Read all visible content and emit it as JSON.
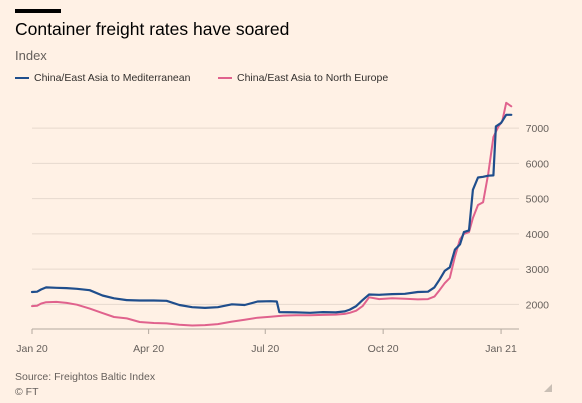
{
  "header": {
    "title": "Container freight rates have soared",
    "subtitle": "Index"
  },
  "footer": {
    "source": "Source: Freightos Baltic Index",
    "credit": "© FT"
  },
  "colors": {
    "series_0": "#1f4e8c",
    "series_1": "#e0628d",
    "grid": "#e6d9ce",
    "axis": "#b3a99f",
    "tick_text": "#66605c"
  },
  "chart_data": {
    "type": "line",
    "title": "Container freight rates have soared",
    "ylabel": "Index",
    "xlabel": "",
    "ylim": [
      1300,
      7800
    ],
    "xlim": [
      "2020-01-01",
      "2021-01-15"
    ],
    "y_ticks": [
      2000,
      3000,
      4000,
      5000,
      6000,
      7000
    ],
    "x_ticks": [
      {
        "date": "2020-01-01",
        "label": "Jan 20"
      },
      {
        "date": "2020-04-01",
        "label": "Apr 20"
      },
      {
        "date": "2020-07-01",
        "label": "Jul 20"
      },
      {
        "date": "2020-10-01",
        "label": "Oct 20"
      },
      {
        "date": "2021-01-01",
        "label": "Jan 21"
      }
    ],
    "grid": true,
    "legend_position": "top-left",
    "series": [
      {
        "name": "China/East Asia to Mediterranean",
        "points": [
          [
            "2020-01-01",
            2350
          ],
          [
            "2020-01-05",
            2360
          ],
          [
            "2020-01-08",
            2420
          ],
          [
            "2020-01-12",
            2480
          ],
          [
            "2020-01-20",
            2470
          ],
          [
            "2020-01-28",
            2460
          ],
          [
            "2020-02-05",
            2440
          ],
          [
            "2020-02-15",
            2400
          ],
          [
            "2020-02-25",
            2250
          ],
          [
            "2020-03-05",
            2170
          ],
          [
            "2020-03-15",
            2120
          ],
          [
            "2020-03-25",
            2110
          ],
          [
            "2020-04-05",
            2110
          ],
          [
            "2020-04-15",
            2100
          ],
          [
            "2020-04-25",
            1980
          ],
          [
            "2020-05-05",
            1920
          ],
          [
            "2020-05-15",
            1900
          ],
          [
            "2020-05-25",
            1920
          ],
          [
            "2020-06-05",
            2000
          ],
          [
            "2020-06-15",
            1980
          ],
          [
            "2020-06-25",
            2080
          ],
          [
            "2020-07-05",
            2090
          ],
          [
            "2020-07-10",
            2080
          ],
          [
            "2020-07-12",
            1780
          ],
          [
            "2020-07-25",
            1770
          ],
          [
            "2020-08-05",
            1760
          ],
          [
            "2020-08-15",
            1780
          ],
          [
            "2020-08-25",
            1770
          ],
          [
            "2020-09-01",
            1800
          ],
          [
            "2020-09-05",
            1850
          ],
          [
            "2020-09-10",
            1950
          ],
          [
            "2020-09-15",
            2120
          ],
          [
            "2020-09-20",
            2280
          ],
          [
            "2020-09-28",
            2270
          ],
          [
            "2020-10-08",
            2290
          ],
          [
            "2020-10-18",
            2300
          ],
          [
            "2020-10-28",
            2350
          ],
          [
            "2020-11-05",
            2360
          ],
          [
            "2020-11-10",
            2480
          ],
          [
            "2020-11-14",
            2700
          ],
          [
            "2020-11-18",
            2950
          ],
          [
            "2020-11-22",
            3050
          ],
          [
            "2020-11-26",
            3550
          ],
          [
            "2020-11-30",
            3700
          ],
          [
            "2020-12-03",
            4050
          ],
          [
            "2020-12-07",
            4100
          ],
          [
            "2020-12-10",
            5250
          ],
          [
            "2020-12-14",
            5600
          ],
          [
            "2020-12-18",
            5620
          ],
          [
            "2020-12-22",
            5650
          ],
          [
            "2020-12-26",
            5660
          ],
          [
            "2020-12-28",
            7050
          ],
          [
            "2021-01-01",
            7150
          ],
          [
            "2021-01-05",
            7380
          ],
          [
            "2021-01-09",
            7380
          ]
        ]
      },
      {
        "name": "China/East Asia to North Europe",
        "points": [
          [
            "2020-01-01",
            1950
          ],
          [
            "2020-01-05",
            1960
          ],
          [
            "2020-01-08",
            2020
          ],
          [
            "2020-01-12",
            2060
          ],
          [
            "2020-01-20",
            2070
          ],
          [
            "2020-01-28",
            2040
          ],
          [
            "2020-02-05",
            1990
          ],
          [
            "2020-02-15",
            1880
          ],
          [
            "2020-02-25",
            1750
          ],
          [
            "2020-03-05",
            1640
          ],
          [
            "2020-03-15",
            1600
          ],
          [
            "2020-03-25",
            1500
          ],
          [
            "2020-04-05",
            1470
          ],
          [
            "2020-04-15",
            1460
          ],
          [
            "2020-04-25",
            1420
          ],
          [
            "2020-05-05",
            1400
          ],
          [
            "2020-05-15",
            1410
          ],
          [
            "2020-05-25",
            1440
          ],
          [
            "2020-06-05",
            1510
          ],
          [
            "2020-06-15",
            1560
          ],
          [
            "2020-06-25",
            1620
          ],
          [
            "2020-07-05",
            1650
          ],
          [
            "2020-07-15",
            1680
          ],
          [
            "2020-07-25",
            1690
          ],
          [
            "2020-08-05",
            1690
          ],
          [
            "2020-08-15",
            1700
          ],
          [
            "2020-08-25",
            1710
          ],
          [
            "2020-09-01",
            1730
          ],
          [
            "2020-09-05",
            1760
          ],
          [
            "2020-09-10",
            1820
          ],
          [
            "2020-09-15",
            1950
          ],
          [
            "2020-09-20",
            2200
          ],
          [
            "2020-09-28",
            2150
          ],
          [
            "2020-10-08",
            2170
          ],
          [
            "2020-10-18",
            2160
          ],
          [
            "2020-10-28",
            2140
          ],
          [
            "2020-11-05",
            2150
          ],
          [
            "2020-11-10",
            2220
          ],
          [
            "2020-11-14",
            2400
          ],
          [
            "2020-11-18",
            2600
          ],
          [
            "2020-11-22",
            2750
          ],
          [
            "2020-11-26",
            3350
          ],
          [
            "2020-11-30",
            3850
          ],
          [
            "2020-12-03",
            4000
          ],
          [
            "2020-12-07",
            4050
          ],
          [
            "2020-12-10",
            4450
          ],
          [
            "2020-12-14",
            4820
          ],
          [
            "2020-12-18",
            4900
          ],
          [
            "2020-12-22",
            5700
          ],
          [
            "2020-12-26",
            6750
          ],
          [
            "2020-12-30",
            7050
          ],
          [
            "2021-01-02",
            7200
          ],
          [
            "2021-01-05",
            7720
          ],
          [
            "2021-01-09",
            7620
          ]
        ]
      }
    ]
  }
}
